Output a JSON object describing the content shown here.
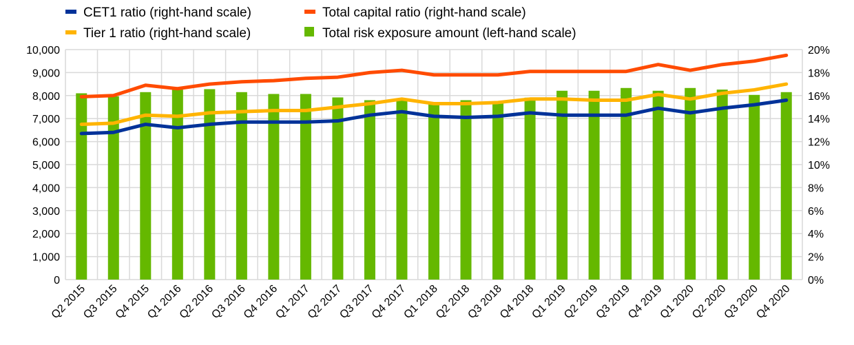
{
  "chart_data": {
    "type": "bar+line",
    "categories": [
      "Q2 2015",
      "Q3 2015",
      "Q4 2015",
      "Q1 2016",
      "Q2 2016",
      "Q3 2016",
      "Q4 2016",
      "Q1 2017",
      "Q2 2017",
      "Q3 2017",
      "Q4 2017",
      "Q1 2018",
      "Q2 2018",
      "Q3 2018",
      "Q4 2018",
      "Q1 2019",
      "Q2 2019",
      "Q3 2019",
      "Q4 2019",
      "Q1 2020",
      "Q2 2020",
      "Q3 2020",
      "Q4 2020"
    ],
    "left_axis": {
      "ylim": [
        0,
        10000
      ],
      "ticks": [
        "0",
        "1,000",
        "2,000",
        "3,000",
        "4,000",
        "5,000",
        "6,000",
        "7,000",
        "8,000",
        "9,000",
        "10,000"
      ]
    },
    "right_axis": {
      "ylim": [
        0,
        20
      ],
      "ticks": [
        "0%",
        "2%",
        "4%",
        "6%",
        "8%",
        "10%",
        "12%",
        "14%",
        "16%",
        "18%",
        "20%"
      ]
    },
    "grid": true,
    "legend_position": "top",
    "series": [
      {
        "name": "CET1 ratio (right-hand scale)",
        "type": "line",
        "axis": "right",
        "color": "#003299",
        "values": [
          12.7,
          12.8,
          13.5,
          13.2,
          13.5,
          13.7,
          13.7,
          13.7,
          13.8,
          14.3,
          14.6,
          14.2,
          14.1,
          14.2,
          14.5,
          14.3,
          14.3,
          14.3,
          14.9,
          14.5,
          14.9,
          15.2,
          15.6
        ]
      },
      {
        "name": "Total capital ratio (right-hand scale)",
        "type": "line",
        "axis": "right",
        "color": "#ff4b00",
        "values": [
          15.9,
          16.0,
          16.9,
          16.6,
          17.0,
          17.2,
          17.3,
          17.5,
          17.6,
          18.0,
          18.2,
          17.8,
          17.8,
          17.8,
          18.1,
          18.1,
          18.1,
          18.1,
          18.7,
          18.2,
          18.7,
          19.0,
          19.5
        ]
      },
      {
        "name": "Tier 1 ratio (right-hand scale)",
        "type": "line",
        "axis": "right",
        "color": "#ffb400",
        "values": [
          13.5,
          13.6,
          14.3,
          14.2,
          14.5,
          14.6,
          14.7,
          14.7,
          15.0,
          15.3,
          15.7,
          15.3,
          15.3,
          15.4,
          15.7,
          15.7,
          15.6,
          15.6,
          16.1,
          15.7,
          16.2,
          16.5,
          17.0
        ]
      },
      {
        "name": "Total risk exposure amount (left-hand scale)",
        "type": "bar",
        "axis": "left",
        "color": "#65b800",
        "values": [
          8100,
          7970,
          8150,
          8260,
          8280,
          8150,
          8070,
          8070,
          7920,
          7800,
          7820,
          7720,
          7800,
          7720,
          7910,
          8210,
          8210,
          8330,
          8210,
          8330,
          8260,
          8030,
          8150
        ]
      }
    ]
  }
}
